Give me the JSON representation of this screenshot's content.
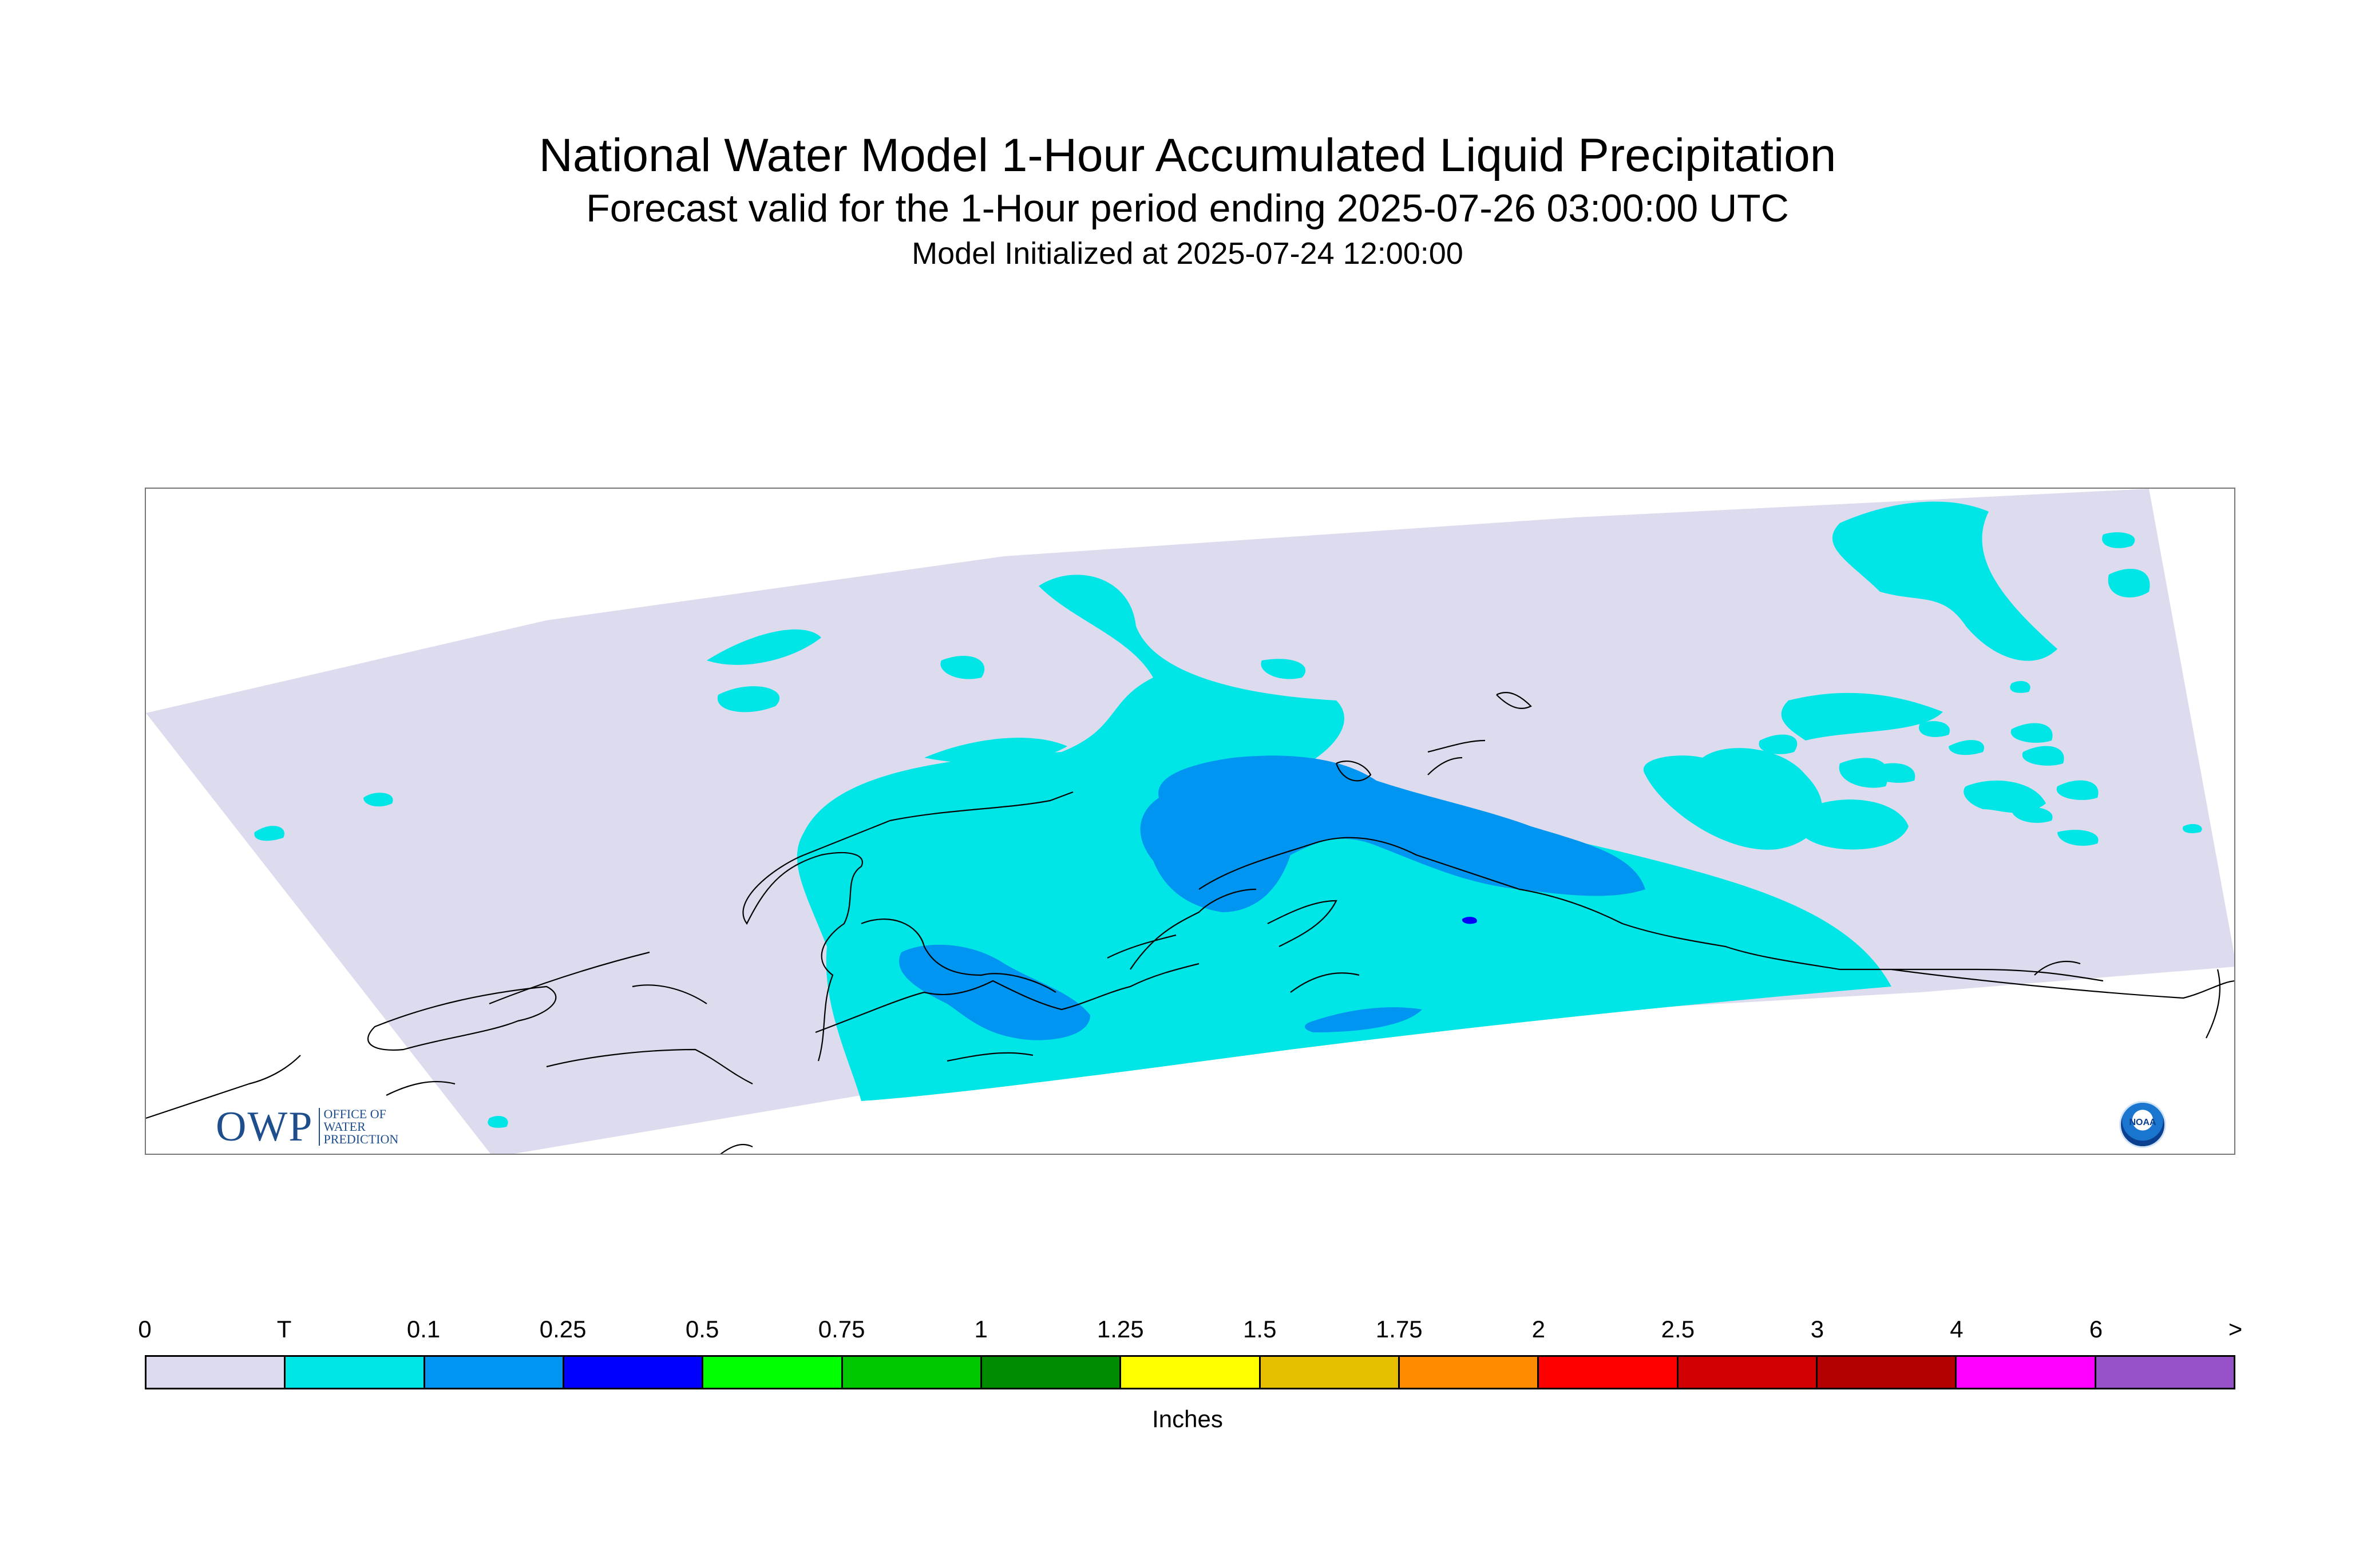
{
  "title": "National Water Model 1-Hour Accumulated Liquid Precipitation",
  "subtitle": "Forecast valid for the 1-Hour period ending 2025-07-26 03:00:00 UTC",
  "init_line": "Model Initialized at 2025-07-24 12:00:00",
  "logos": {
    "owp_big": "OWP",
    "owp_small_1": "OFFICE OF",
    "owp_small_2": "WATER",
    "owp_small_3": "PREDICTION",
    "noaa": "NOAA"
  },
  "legend": {
    "tick_labels": [
      "0",
      "T",
      "0.1",
      "0.25",
      "0.5",
      "0.75",
      "1",
      "1.25",
      "1.5",
      "1.75",
      "2",
      "2.5",
      "3",
      "4",
      "6",
      ">"
    ],
    "colors": [
      "#dcdcee",
      "#00e6e6",
      "#0095f0",
      "#0000ff",
      "#00ff00",
      "#00c800",
      "#008c00",
      "#ffff00",
      "#e6be00",
      "#ff8c00",
      "#ff0000",
      "#d20000",
      "#b40000",
      "#ff00ff",
      "#9650c8"
    ],
    "units": "Inches"
  },
  "map_colors": {
    "domain": "#dcdcee",
    "trace": "#00e6e6",
    "light": "#0095f0",
    "moderate": "#0000ff",
    "coast": "#000000"
  }
}
